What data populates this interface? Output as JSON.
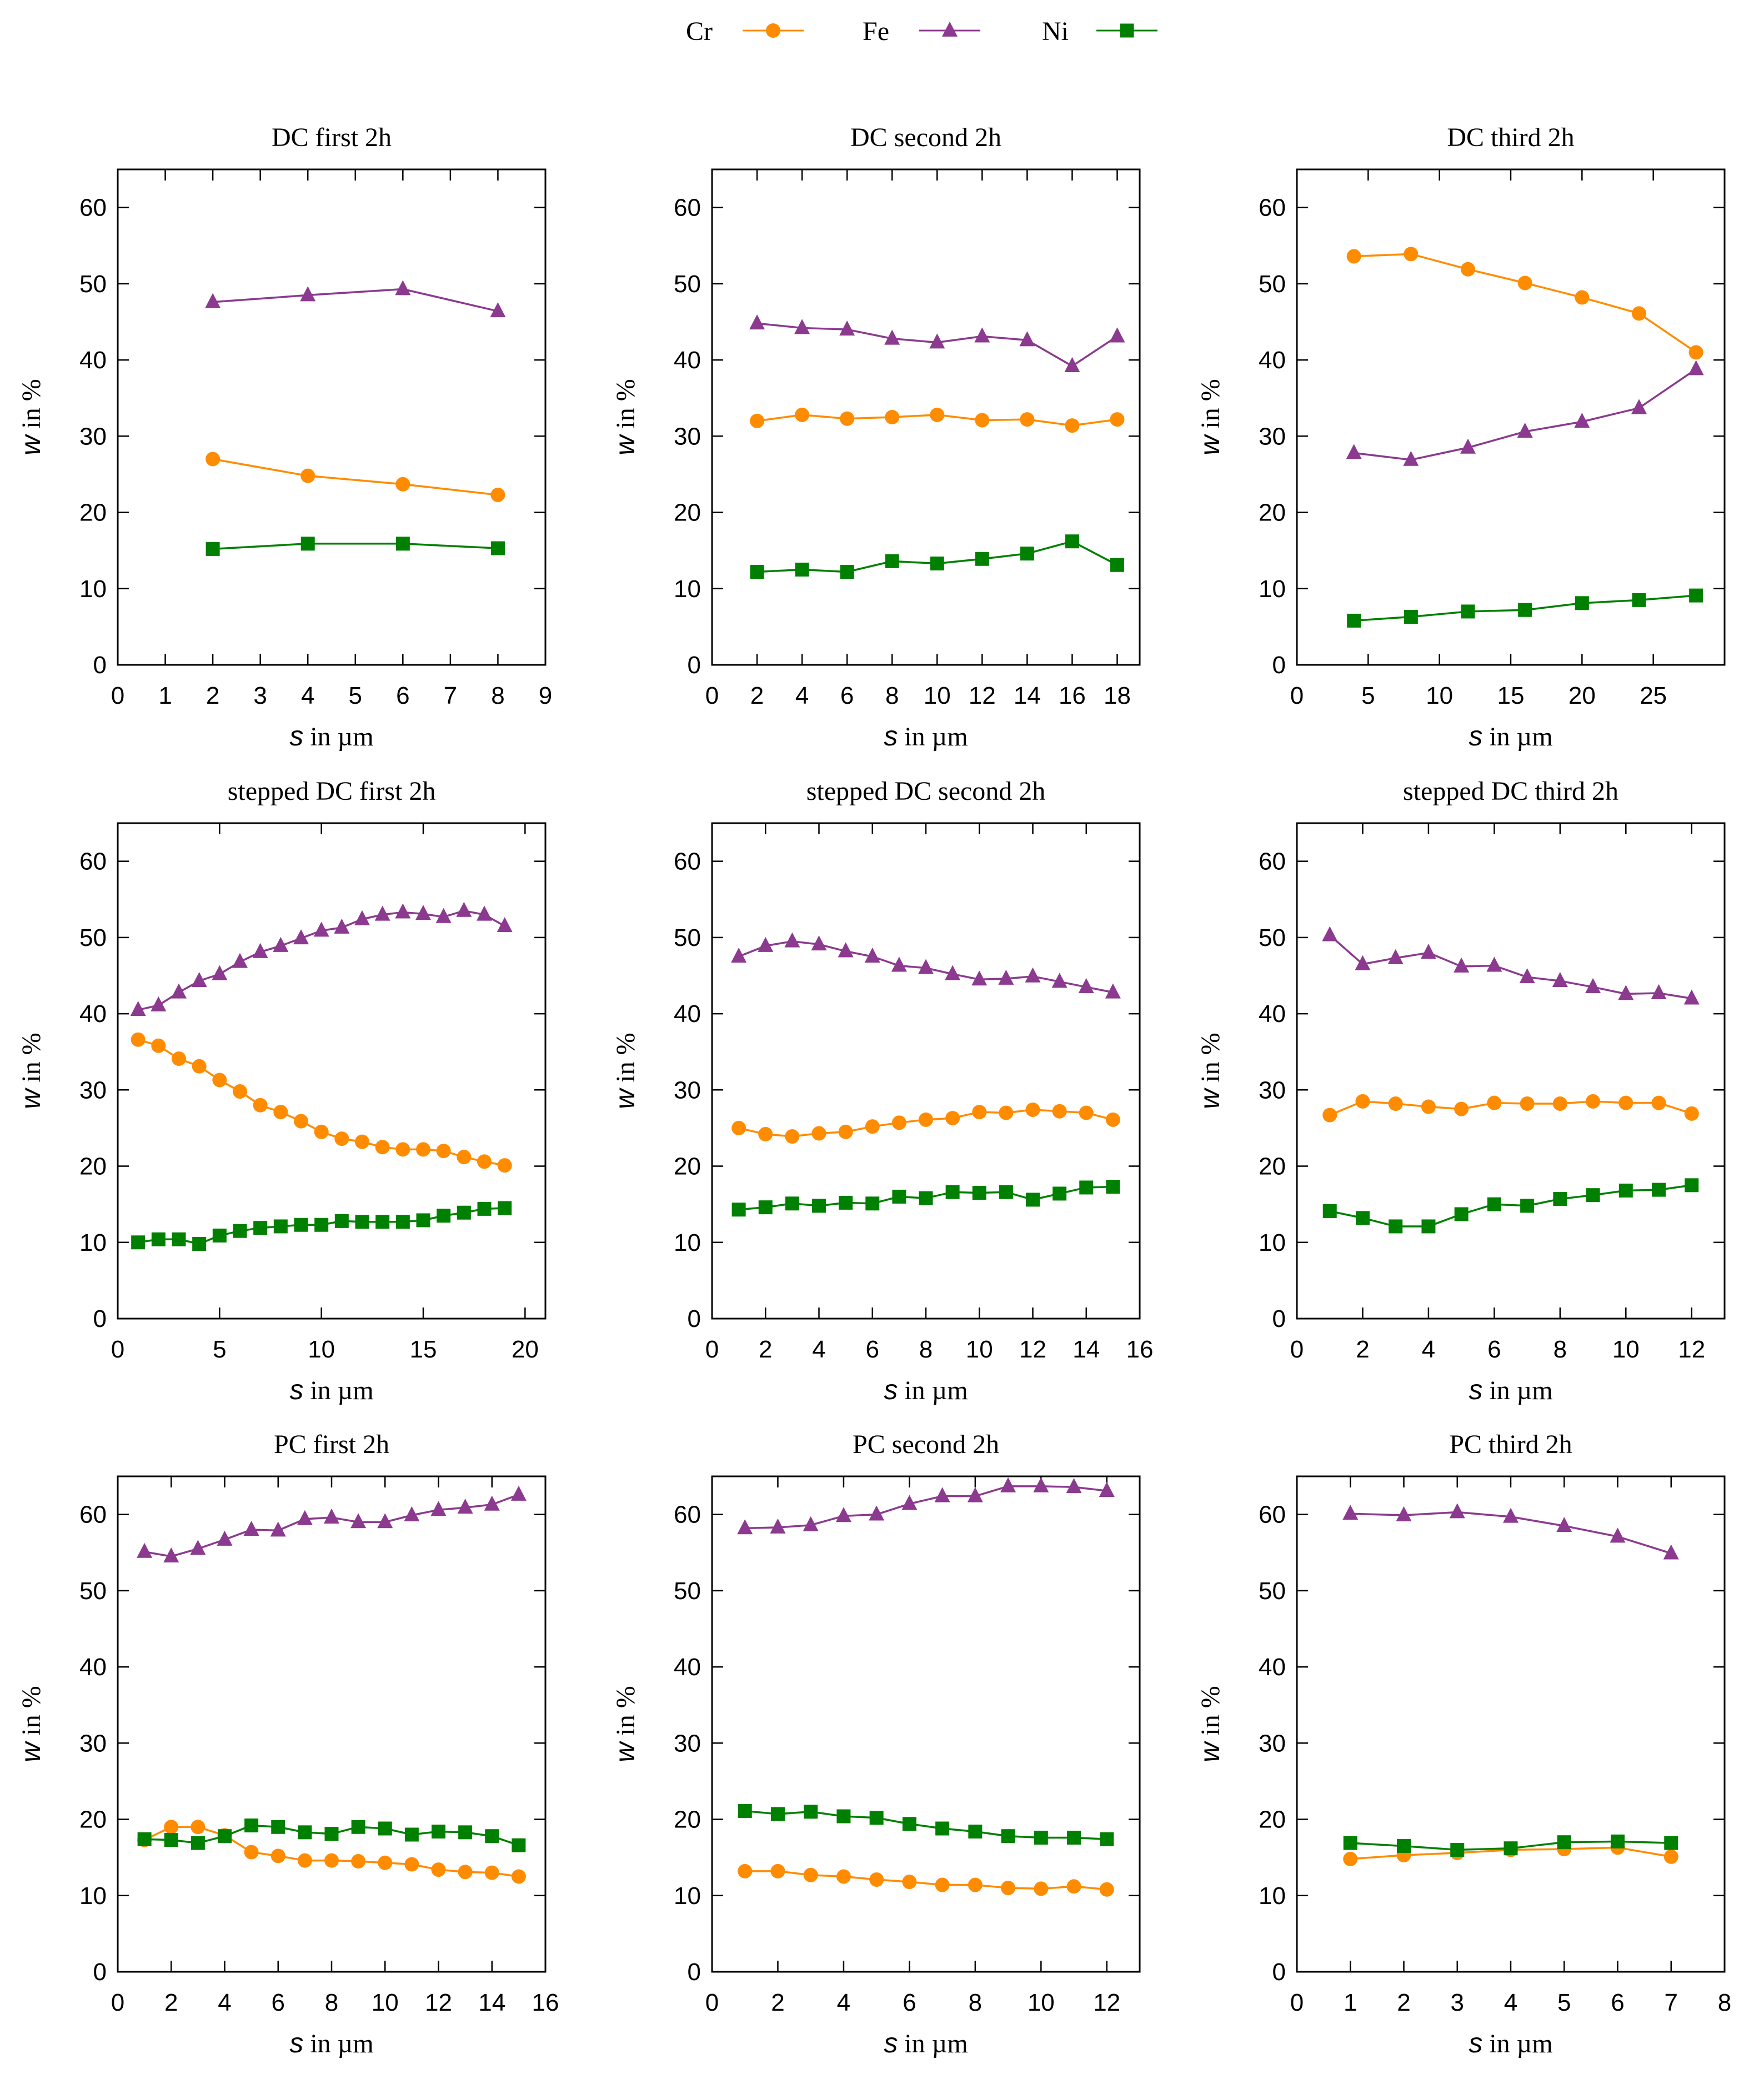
{
  "legend": [
    {
      "name": "Cr",
      "color": "#FF8C00",
      "marker": "circle"
    },
    {
      "name": "Fe",
      "color": "#8B3A8F",
      "marker": "triangle"
    },
    {
      "name": "Ni",
      "color": "#008000",
      "marker": "square"
    }
  ],
  "axis_text": {
    "y_var": "w",
    "y_rest": " in %",
    "x_var": "s",
    "x_rest": " in µm"
  },
  "chart_data": [
    {
      "type": "line",
      "title": "DC first 2h",
      "xlabel": "s in µm",
      "ylabel": "w in %",
      "xlim": [
        0,
        9
      ],
      "ylim": [
        0,
        65
      ],
      "xticks": [
        0,
        1,
        2,
        3,
        4,
        5,
        6,
        7,
        8,
        9
      ],
      "yticks": [
        0,
        10,
        20,
        30,
        40,
        50,
        60
      ],
      "x": [
        2,
        4,
        6,
        8
      ],
      "series": [
        {
          "name": "Cr",
          "values": [
            27,
            24.8,
            23.7,
            22.3
          ]
        },
        {
          "name": "Fe",
          "values": [
            47.6,
            48.5,
            49.3,
            46.4
          ]
        },
        {
          "name": "Ni",
          "values": [
            15.2,
            15.9,
            15.9,
            15.3
          ]
        }
      ]
    },
    {
      "type": "line",
      "title": "DC second 2h",
      "xlabel": "s in µm",
      "ylabel": "w in %",
      "xlim": [
        0,
        19
      ],
      "ylim": [
        0,
        65
      ],
      "xticks": [
        0,
        2,
        4,
        6,
        8,
        10,
        12,
        14,
        16,
        18
      ],
      "yticks": [
        0,
        10,
        20,
        30,
        40,
        50,
        60
      ],
      "x": [
        2,
        4,
        6,
        8,
        10,
        12,
        14,
        16,
        18
      ],
      "series": [
        {
          "name": "Cr",
          "values": [
            32,
            32.8,
            32.3,
            32.5,
            32.8,
            32.1,
            32.2,
            31.4,
            32.2
          ]
        },
        {
          "name": "Fe",
          "values": [
            44.8,
            44.2,
            44,
            42.8,
            42.3,
            43.1,
            42.6,
            39.2,
            43.1
          ]
        },
        {
          "name": "Ni",
          "values": [
            12.2,
            12.5,
            12.2,
            13.6,
            13.3,
            13.9,
            14.6,
            16.2,
            13.1
          ]
        }
      ]
    },
    {
      "type": "line",
      "title": "DC third 2h",
      "xlabel": "s in µm",
      "ylabel": "w in %",
      "xlim": [
        0,
        30
      ],
      "ylim": [
        0,
        65
      ],
      "xticks": [
        0,
        5,
        10,
        15,
        20,
        25
      ],
      "yticks": [
        0,
        10,
        20,
        30,
        40,
        50,
        60
      ],
      "x": [
        4,
        8,
        12,
        16,
        20,
        24,
        28
      ],
      "series": [
        {
          "name": "Cr",
          "values": [
            53.6,
            53.9,
            51.9,
            50.1,
            48.2,
            46.1,
            41
          ]
        },
        {
          "name": "Fe",
          "values": [
            27.8,
            26.9,
            28.5,
            30.6,
            31.9,
            33.7,
            38.8
          ]
        },
        {
          "name": "Ni",
          "values": [
            5.8,
            6.3,
            7,
            7.2,
            8.1,
            8.5,
            9.1
          ]
        }
      ]
    },
    {
      "type": "line",
      "title": "stepped DC first 2h",
      "xlabel": "s in µm",
      "ylabel": "w in %",
      "xlim": [
        0,
        21
      ],
      "ylim": [
        0,
        65
      ],
      "xticks": [
        0,
        5,
        10,
        15,
        20
      ],
      "yticks": [
        0,
        10,
        20,
        30,
        40,
        50,
        60
      ],
      "x": [
        1,
        2,
        3,
        4,
        5,
        6,
        7,
        8,
        9,
        10,
        11,
        12,
        13,
        14,
        15,
        16,
        17,
        18,
        19
      ],
      "series": [
        {
          "name": "Cr",
          "values": [
            36.6,
            35.8,
            34.1,
            33.1,
            31.3,
            29.8,
            28,
            27.1,
            25.9,
            24.5,
            23.6,
            23.2,
            22.5,
            22.2,
            22.2,
            22,
            21.2,
            20.6,
            20.1
          ]
        },
        {
          "name": "Fe",
          "values": [
            40.5,
            41.1,
            42.8,
            44.3,
            45.2,
            46.8,
            48.1,
            48.9,
            49.9,
            50.9,
            51.3,
            52.4,
            53,
            53.3,
            53.1,
            52.7,
            53.5,
            53,
            51.5
          ]
        },
        {
          "name": "Ni",
          "values": [
            10,
            10.4,
            10.4,
            9.8,
            10.9,
            11.5,
            11.9,
            12.1,
            12.3,
            12.3,
            12.8,
            12.7,
            12.7,
            12.7,
            12.9,
            13.5,
            13.9,
            14.4,
            14.5
          ]
        }
      ]
    },
    {
      "type": "line",
      "title": "stepped DC second 2h",
      "xlabel": "s in µm",
      "ylabel": "w in %",
      "xlim": [
        0,
        16
      ],
      "ylim": [
        0,
        65
      ],
      "xticks": [
        0,
        2,
        4,
        6,
        8,
        10,
        12,
        14,
        16
      ],
      "yticks": [
        0,
        10,
        20,
        30,
        40,
        50,
        60
      ],
      "x": [
        1,
        2,
        3,
        4,
        5,
        6,
        7,
        8,
        9,
        10,
        11,
        12,
        13,
        14,
        15
      ],
      "series": [
        {
          "name": "Cr",
          "values": [
            25,
            24.2,
            23.9,
            24.3,
            24.5,
            25.2,
            25.7,
            26.1,
            26.3,
            27.1,
            27,
            27.4,
            27.2,
            27,
            26.1
          ]
        },
        {
          "name": "Fe",
          "values": [
            47.5,
            48.9,
            49.5,
            49.1,
            48.2,
            47.5,
            46.3,
            46,
            45.2,
            44.5,
            44.6,
            44.9,
            44.2,
            43.5,
            42.8
          ]
        },
        {
          "name": "Ni",
          "values": [
            14.3,
            14.6,
            15.1,
            14.8,
            15.2,
            15.1,
            16,
            15.8,
            16.6,
            16.5,
            16.6,
            15.6,
            16.4,
            17.2,
            17.3
          ]
        }
      ]
    },
    {
      "type": "line",
      "title": "stepped DC third 2h",
      "xlabel": "s in µm",
      "ylabel": "w in %",
      "xlim": [
        0,
        13
      ],
      "ylim": [
        0,
        65
      ],
      "xticks": [
        0,
        2,
        4,
        6,
        8,
        10,
        12
      ],
      "yticks": [
        0,
        10,
        20,
        30,
        40,
        50,
        60
      ],
      "x": [
        1,
        2,
        3,
        4,
        5,
        6,
        7,
        8,
        9,
        10,
        11,
        12
      ],
      "series": [
        {
          "name": "Cr",
          "values": [
            26.7,
            28.5,
            28.2,
            27.8,
            27.5,
            28.3,
            28.2,
            28.2,
            28.5,
            28.3,
            28.3,
            26.9
          ]
        },
        {
          "name": "Fe",
          "values": [
            50.3,
            46.5,
            47.3,
            48,
            46.2,
            46.3,
            44.8,
            44.3,
            43.5,
            42.6,
            42.7,
            42
          ]
        },
        {
          "name": "Ni",
          "values": [
            14.1,
            13.2,
            12.1,
            12.1,
            13.7,
            15,
            14.8,
            15.7,
            16.2,
            16.8,
            16.9,
            17.5
          ]
        }
      ]
    },
    {
      "type": "line",
      "title": "PC first 2h",
      "xlabel": "s in µm",
      "ylabel": "w in %",
      "xlim": [
        0,
        16
      ],
      "ylim": [
        0,
        65
      ],
      "xticks": [
        0,
        2,
        4,
        6,
        8,
        10,
        12,
        14,
        16
      ],
      "yticks": [
        0,
        10,
        20,
        30,
        40,
        50,
        60
      ],
      "x": [
        1,
        2,
        3,
        4,
        5,
        6,
        7,
        8,
        9,
        10,
        11,
        12,
        13,
        14,
        15
      ],
      "series": [
        {
          "name": "Cr",
          "values": [
            17.3,
            19,
            19,
            17.9,
            15.7,
            15.2,
            14.6,
            14.6,
            14.5,
            14.3,
            14.1,
            13.4,
            13.1,
            13,
            12.5
          ]
        },
        {
          "name": "Fe",
          "values": [
            55.1,
            54.5,
            55.5,
            56.7,
            58,
            57.9,
            59.4,
            59.6,
            59,
            59,
            59.9,
            60.6,
            60.9,
            61.3,
            62.6
          ]
        },
        {
          "name": "Ni",
          "values": [
            17.4,
            17.3,
            16.9,
            17.8,
            19.2,
            19,
            18.3,
            18.1,
            19,
            18.8,
            18,
            18.4,
            18.3,
            17.8,
            16.6
          ]
        }
      ]
    },
    {
      "type": "line",
      "title": "PC second 2h",
      "xlabel": "s in µm",
      "ylabel": "w in %",
      "xlim": [
        0,
        13
      ],
      "ylim": [
        0,
        65
      ],
      "xticks": [
        0,
        2,
        4,
        6,
        8,
        10,
        12
      ],
      "yticks": [
        0,
        10,
        20,
        30,
        40,
        50,
        60
      ],
      "x": [
        1,
        2,
        3,
        4,
        5,
        6,
        7,
        8,
        9,
        10,
        11,
        12
      ],
      "series": [
        {
          "name": "Cr",
          "values": [
            13.2,
            13.2,
            12.7,
            12.5,
            12.1,
            11.8,
            11.4,
            11.4,
            11,
            10.9,
            11.2,
            10.8
          ]
        },
        {
          "name": "Fe",
          "values": [
            58.2,
            58.3,
            58.6,
            59.8,
            60,
            61.4,
            62.4,
            62.4,
            63.7,
            63.7,
            63.6,
            63.1
          ]
        },
        {
          "name": "Ni",
          "values": [
            21.1,
            20.7,
            21,
            20.4,
            20.2,
            19.4,
            18.8,
            18.4,
            17.8,
            17.6,
            17.6,
            17.4
          ]
        }
      ]
    },
    {
      "type": "line",
      "title": "PC third 2h",
      "xlabel": "s in µm",
      "ylabel": "w in %",
      "xlim": [
        0,
        8
      ],
      "ylim": [
        0,
        65
      ],
      "xticks": [
        0,
        1,
        2,
        3,
        4,
        5,
        6,
        7,
        8
      ],
      "yticks": [
        0,
        10,
        20,
        30,
        40,
        50,
        60
      ],
      "x": [
        1,
        2,
        3,
        4,
        5,
        6,
        7
      ],
      "series": [
        {
          "name": "Cr",
          "values": [
            14.8,
            15.3,
            15.6,
            16,
            16.1,
            16.3,
            15.1
          ]
        },
        {
          "name": "Fe",
          "values": [
            60.1,
            59.9,
            60.3,
            59.7,
            58.5,
            57.1,
            54.9
          ]
        },
        {
          "name": "Ni",
          "values": [
            16.9,
            16.5,
            16,
            16.2,
            17,
            17.1,
            16.9
          ]
        }
      ]
    }
  ]
}
